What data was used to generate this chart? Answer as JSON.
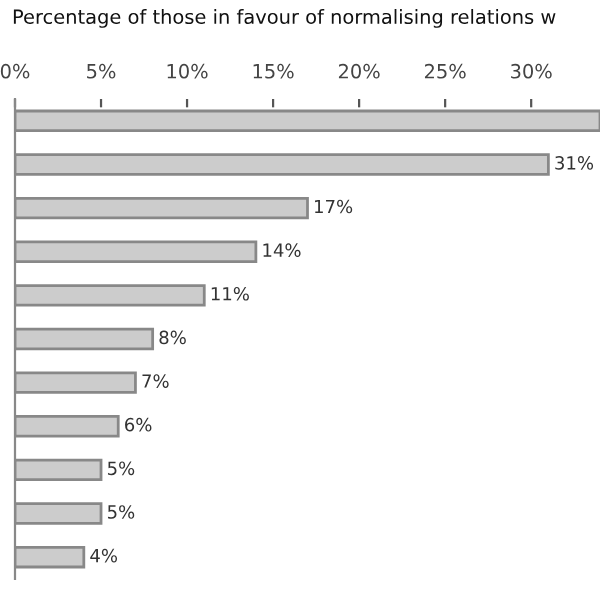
{
  "chart_data": {
    "type": "bar",
    "orientation": "horizontal",
    "title": "Percentage of those in favour of normalising relations w",
    "categories": [
      null,
      null,
      null,
      null,
      null,
      null,
      null,
      null,
      null,
      null,
      null
    ],
    "values": [
      34,
      31,
      17,
      14,
      11,
      8,
      7,
      6,
      5,
      5,
      4
    ],
    "value_labels": [
      null,
      "31%",
      "17%",
      "14%",
      "11%",
      "8%",
      "7%",
      "6%",
      "5%",
      "5%",
      "4%"
    ],
    "color": "#cccccc",
    "xlim": [
      0,
      34
    ],
    "xticks": [
      {
        "value": 0,
        "label": "0%"
      },
      {
        "value": 5,
        "label": "5%"
      },
      {
        "value": 10,
        "label": "10%"
      },
      {
        "value": 15,
        "label": "15%"
      },
      {
        "value": 20,
        "label": "20%"
      },
      {
        "value": 25,
        "label": "25%"
      },
      {
        "value": 30,
        "label": "30%"
      }
    ],
    "grid": false,
    "legend": false
  }
}
